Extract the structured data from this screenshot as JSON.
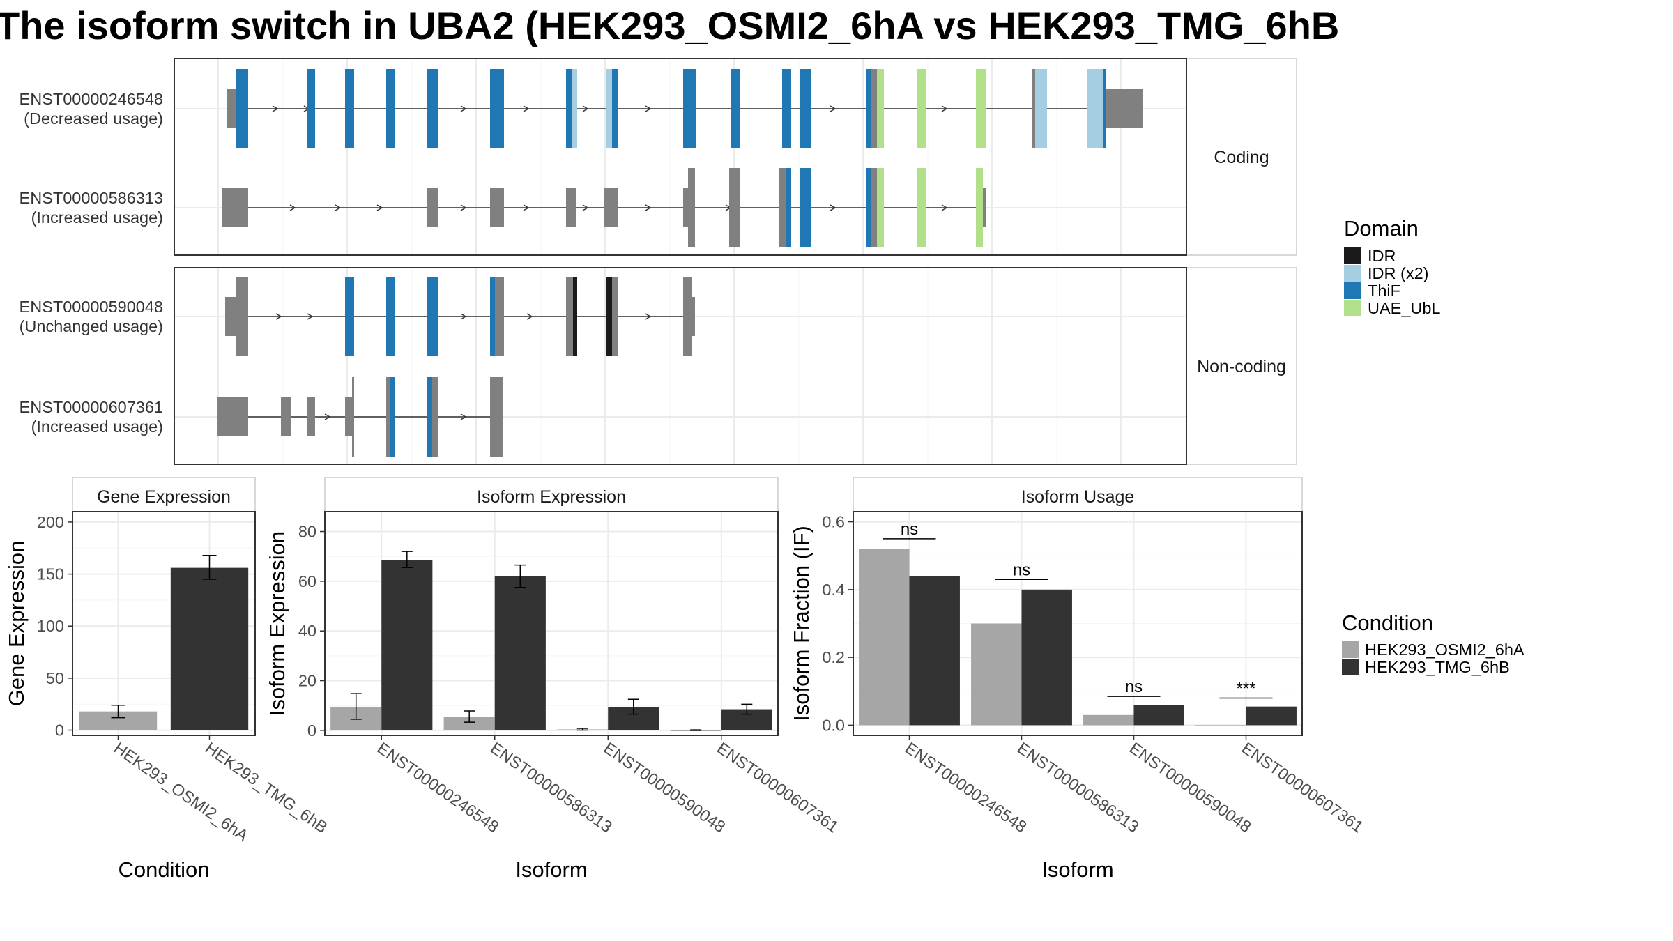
{
  "title": "The isoform switch in UBA2 (HEK293_OSMI2_6hA vs HEK293_TMG_6hB",
  "colors": {
    "intron": "#333333",
    "exon_gray": "#808080",
    "IDR": "#1a1a1a",
    "IDR (x2)": "#a6cee3",
    "ThiF": "#1f78b4",
    "UAE_UbL": "#b2df8a",
    "cond1": "#a6a6a6",
    "cond2": "#333333",
    "grid": "#ebebeb",
    "panel_border": "#333333",
    "strip_bg": "#ffffff"
  },
  "structure": {
    "facets": [
      "Coding",
      "Non-coding"
    ],
    "transcripts": [
      {
        "id": "ENST00000246548",
        "usage": "(Decreased usage)",
        "facet": "Coding"
      },
      {
        "id": "ENST00000586313",
        "usage": "(Increased usage)",
        "facet": "Coding"
      },
      {
        "id": "ENST00000590048",
        "usage": "(Unchanged usage)",
        "facet": "Non-coding"
      },
      {
        "id": "ENST00000607361",
        "usage": "(Increased usage)",
        "facet": "Non-coding"
      }
    ]
  },
  "domain_legend": {
    "title": "Domain",
    "items": [
      "IDR",
      "IDR (x2)",
      "ThiF",
      "UAE_UbL"
    ]
  },
  "condition_legend": {
    "title": "Condition",
    "items": [
      "HEK293_OSMI2_6hA",
      "HEK293_TMG_6hB"
    ]
  },
  "chart_data": [
    {
      "type": "bar",
      "title": "Gene Expression",
      "xlabel": "Condition",
      "ylabel": "Gene Expression",
      "ylim": [
        -5,
        210
      ],
      "yticks": [
        0,
        50,
        100,
        150,
        200
      ],
      "categories": [
        "HEK293_OSMI2_6hA",
        "HEK293_TMG_6hB"
      ],
      "values": [
        18,
        156
      ],
      "errors": [
        [
          12,
          24
        ],
        [
          145,
          168
        ]
      ]
    },
    {
      "type": "bar",
      "title": "Isoform Expression",
      "xlabel": "Isoform",
      "ylabel": "Isoform Expression",
      "ylim": [
        -2,
        88
      ],
      "yticks": [
        0,
        20,
        40,
        60,
        80
      ],
      "categories": [
        "ENST00000246548",
        "ENST00000586313",
        "ENST00000590048",
        "ENST00000607361"
      ],
      "series": [
        {
          "name": "HEK293_OSMI2_6hA",
          "values": [
            9.5,
            5.5,
            0.4,
            0.1
          ],
          "errors": [
            [
              4.5,
              14.8
            ],
            [
              3.3,
              7.8
            ],
            [
              0.1,
              0.8
            ],
            [
              0,
              0.2
            ]
          ]
        },
        {
          "name": "HEK293_TMG_6hB",
          "values": [
            68.5,
            62,
            9.5,
            8.5
          ],
          "errors": [
            [
              65.5,
              72
            ],
            [
              57.5,
              66.5
            ],
            [
              6.5,
              12.5
            ],
            [
              6.5,
              10.5
            ]
          ]
        }
      ]
    },
    {
      "type": "bar",
      "title": "Isoform Usage",
      "xlabel": "Isoform",
      "ylabel": "Isoform Fraction (IF)",
      "ylim": [
        -0.03,
        0.63
      ],
      "yticks": [
        "0.0",
        "0.2",
        "0.4",
        "0.6"
      ],
      "categories": [
        "ENST00000246548",
        "ENST00000586313",
        "ENST00000590048",
        "ENST00000607361"
      ],
      "series": [
        {
          "name": "HEK293_OSMI2_6hA",
          "values": [
            0.52,
            0.3,
            0.03,
            0.0
          ]
        },
        {
          "name": "HEK293_TMG_6hB",
          "values": [
            0.44,
            0.4,
            0.06,
            0.055
          ]
        }
      ],
      "significance": [
        "ns",
        "ns",
        "ns",
        "***"
      ],
      "significance_y": [
        0.55,
        0.43,
        0.085,
        0.08
      ]
    }
  ]
}
